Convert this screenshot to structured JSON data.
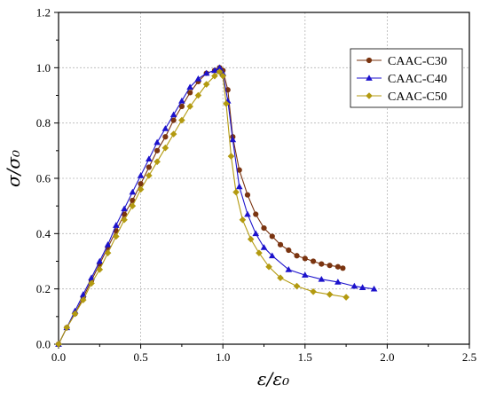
{
  "chart_data": {
    "type": "line",
    "xlabel": "ε/ε₀",
    "ylabel": "σ/σ₀",
    "xlim": [
      0,
      2.5
    ],
    "ylim": [
      0,
      1.2
    ],
    "xticks": [
      0,
      0.5,
      1,
      1.5,
      2,
      2.5
    ],
    "xtick_labels": [
      "0.0",
      "0.5",
      "1.0",
      "1.5",
      "2.0",
      "2.5"
    ],
    "yticks": [
      0,
      0.2,
      0.4,
      0.6,
      0.8,
      1.0,
      1.2
    ],
    "ytick_labels": [
      "0.0",
      "0.2",
      "0.4",
      "0.6",
      "0.8",
      "1.0",
      "1.2"
    ],
    "grid": true,
    "legend_position": "top-right",
    "series": [
      {
        "name": "CAAC-C30",
        "color": "#7a3410",
        "marker": "circle",
        "x": [
          0,
          0.05,
          0.1,
          0.15,
          0.2,
          0.25,
          0.3,
          0.35,
          0.4,
          0.45,
          0.5,
          0.55,
          0.6,
          0.65,
          0.7,
          0.75,
          0.8,
          0.85,
          0.9,
          0.95,
          0.98,
          1.0,
          1.03,
          1.06,
          1.1,
          1.15,
          1.2,
          1.25,
          1.3,
          1.35,
          1.4,
          1.45,
          1.5,
          1.55,
          1.6,
          1.65,
          1.7,
          1.73
        ],
        "y": [
          0.0,
          0.06,
          0.11,
          0.17,
          0.23,
          0.29,
          0.35,
          0.41,
          0.47,
          0.52,
          0.58,
          0.64,
          0.7,
          0.75,
          0.81,
          0.86,
          0.91,
          0.95,
          0.98,
          0.99,
          1.0,
          0.99,
          0.92,
          0.75,
          0.63,
          0.54,
          0.47,
          0.42,
          0.39,
          0.36,
          0.34,
          0.32,
          0.31,
          0.3,
          0.29,
          0.285,
          0.28,
          0.275
        ]
      },
      {
        "name": "CAAC-C40",
        "color": "#1c12cc",
        "marker": "triangle",
        "x": [
          0,
          0.05,
          0.1,
          0.15,
          0.2,
          0.25,
          0.3,
          0.35,
          0.4,
          0.45,
          0.5,
          0.55,
          0.6,
          0.65,
          0.7,
          0.75,
          0.8,
          0.85,
          0.9,
          0.95,
          0.98,
          1.0,
          1.03,
          1.06,
          1.1,
          1.15,
          1.2,
          1.25,
          1.3,
          1.4,
          1.5,
          1.6,
          1.7,
          1.8,
          1.85,
          1.92
        ],
        "y": [
          0.0,
          0.06,
          0.12,
          0.18,
          0.24,
          0.3,
          0.36,
          0.43,
          0.49,
          0.55,
          0.61,
          0.67,
          0.73,
          0.78,
          0.83,
          0.88,
          0.93,
          0.96,
          0.98,
          0.99,
          1.0,
          0.98,
          0.88,
          0.74,
          0.57,
          0.47,
          0.4,
          0.35,
          0.32,
          0.27,
          0.25,
          0.235,
          0.225,
          0.21,
          0.205,
          0.2
        ]
      },
      {
        "name": "CAAC-C50",
        "color": "#b39a10",
        "marker": "diamond",
        "x": [
          0,
          0.05,
          0.1,
          0.15,
          0.2,
          0.25,
          0.3,
          0.35,
          0.4,
          0.45,
          0.5,
          0.55,
          0.6,
          0.65,
          0.7,
          0.75,
          0.8,
          0.85,
          0.9,
          0.95,
          0.98,
          1.0,
          1.02,
          1.05,
          1.08,
          1.12,
          1.17,
          1.22,
          1.28,
          1.35,
          1.45,
          1.55,
          1.65,
          1.75
        ],
        "y": [
          0.0,
          0.06,
          0.11,
          0.16,
          0.22,
          0.27,
          0.33,
          0.39,
          0.45,
          0.5,
          0.56,
          0.61,
          0.66,
          0.71,
          0.76,
          0.81,
          0.86,
          0.9,
          0.94,
          0.97,
          0.985,
          0.97,
          0.87,
          0.68,
          0.55,
          0.45,
          0.38,
          0.33,
          0.28,
          0.24,
          0.21,
          0.19,
          0.18,
          0.17
        ]
      }
    ]
  }
}
